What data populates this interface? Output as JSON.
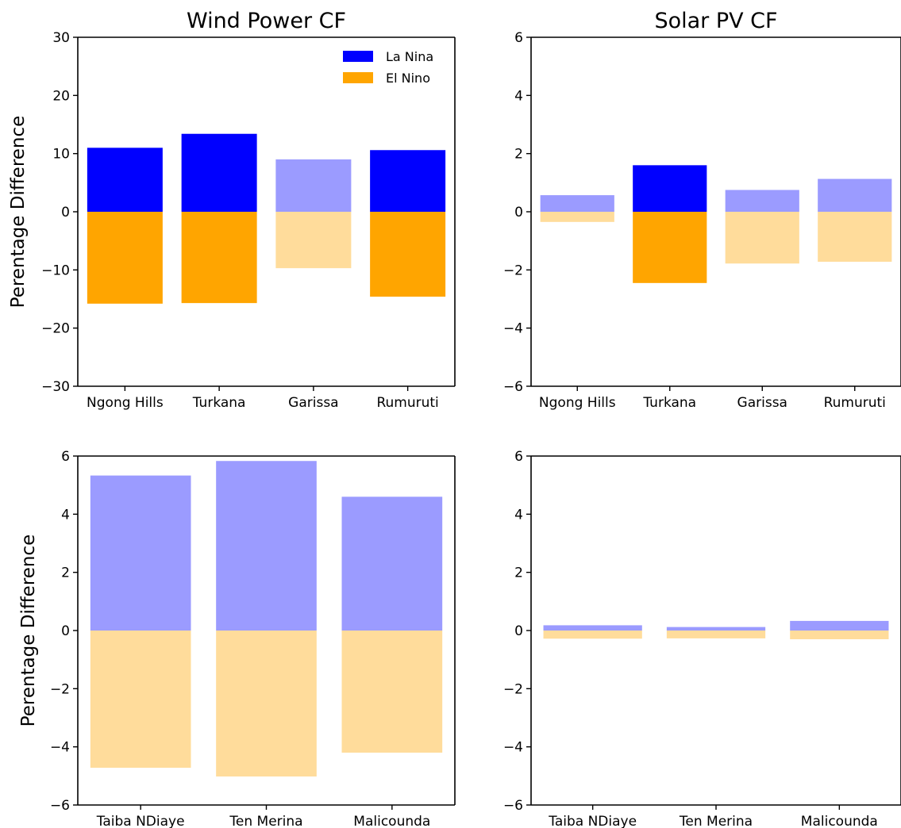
{
  "colors": {
    "la_nina": "#0000ff",
    "el_nino": "#ffa500",
    "la_nina_faded": "#9b9bff",
    "el_nino_faded": "#ffdc9b"
  },
  "chart_data": [
    {
      "id": "wind-kenya",
      "type": "bar",
      "title": "Wind Power CF",
      "xlabel": "",
      "ylabel": "Perentage Difference",
      "ylim": [
        -30,
        30
      ],
      "yticks": [
        -30,
        -20,
        -10,
        0,
        10,
        20,
        30
      ],
      "ytick_labels": [
        "−30",
        "−20",
        "−10",
        "0",
        "10",
        "20",
        "30"
      ],
      "categories": [
        "Ngong Hills",
        "Turkana",
        "Garissa",
        "Rumuruti"
      ],
      "series": [
        {
          "name": "La Nina",
          "values": [
            11.0,
            13.4,
            9.0,
            10.6
          ],
          "significant": [
            true,
            true,
            false,
            true
          ]
        },
        {
          "name": "El Nino",
          "values": [
            -15.8,
            -15.7,
            -9.7,
            -14.6
          ],
          "significant": [
            true,
            true,
            false,
            true
          ]
        }
      ],
      "legend": {
        "position": "top-right",
        "entries": [
          "La Nina",
          "El Nino"
        ]
      },
      "grid": false
    },
    {
      "id": "solar-kenya",
      "type": "bar",
      "title": "Solar PV CF",
      "xlabel": "",
      "ylabel": "",
      "ylim": [
        -6,
        6
      ],
      "yticks": [
        -6,
        -4,
        -2,
        0,
        2,
        4,
        6
      ],
      "ytick_labels": [
        "−6",
        "−4",
        "−2",
        "0",
        "2",
        "4",
        "6"
      ],
      "categories": [
        "Ngong Hills",
        "Turkana",
        "Garissa",
        "Rumuruti"
      ],
      "series": [
        {
          "values": [
            0.57,
            1.6,
            0.75,
            1.13
          ],
          "significant": [
            false,
            true,
            false,
            false
          ]
        },
        {
          "values": [
            -0.35,
            -2.45,
            -1.78,
            -1.72
          ],
          "significant": [
            false,
            true,
            false,
            false
          ]
        }
      ],
      "grid": false
    },
    {
      "id": "wind-senegal",
      "type": "bar",
      "title": "",
      "xlabel": "",
      "ylabel": "Perentage Difference",
      "ylim": [
        -6,
        6
      ],
      "yticks": [
        -6,
        -4,
        -2,
        0,
        2,
        4,
        6
      ],
      "ytick_labels": [
        "−6",
        "−4",
        "−2",
        "0",
        "2",
        "4",
        "6"
      ],
      "categories": [
        "Taiba NDiaye",
        "Ten Merina",
        "Malicounda"
      ],
      "series": [
        {
          "values": [
            5.33,
            5.83,
            4.6
          ],
          "significant": [
            false,
            false,
            false
          ]
        },
        {
          "values": [
            -4.72,
            -5.02,
            -4.2
          ],
          "significant": [
            false,
            false,
            false
          ]
        }
      ],
      "grid": false
    },
    {
      "id": "solar-senegal",
      "type": "bar",
      "title": "",
      "xlabel": "",
      "ylabel": "",
      "ylim": [
        -6,
        6
      ],
      "yticks": [
        -6,
        -4,
        -2,
        0,
        2,
        4,
        6
      ],
      "ytick_labels": [
        "−6",
        "−4",
        "−2",
        "0",
        "2",
        "4",
        "6"
      ],
      "categories": [
        "Taiba NDiaye",
        "Ten Merina",
        "Malicounda"
      ],
      "series": [
        {
          "values": [
            0.18,
            0.12,
            0.33
          ],
          "significant": [
            false,
            false,
            false
          ]
        },
        {
          "values": [
            -0.28,
            -0.27,
            -0.3
          ],
          "significant": [
            false,
            false,
            false
          ]
        }
      ],
      "grid": false
    }
  ]
}
